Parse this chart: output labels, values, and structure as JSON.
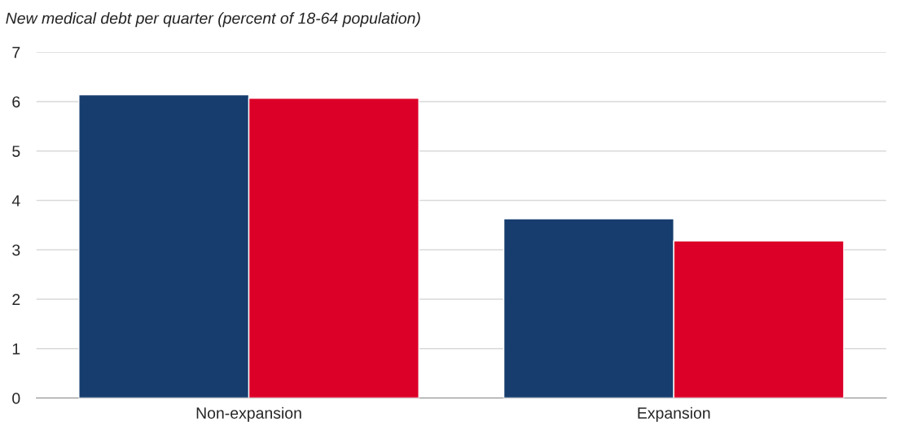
{
  "chart_data": {
    "type": "bar",
    "title": "New medical debt per quarter (percent of 18-64 population)",
    "categories": [
      "Non-expansion",
      "Expansion"
    ],
    "series": [
      {
        "color": "#163d6e",
        "values": [
          6.14,
          3.63
        ]
      },
      {
        "color": "#dc0028",
        "values": [
          6.07,
          3.18
        ]
      }
    ],
    "ylim": [
      0,
      7
    ],
    "yticks": [
      0,
      1,
      2,
      3,
      4,
      5,
      6,
      7
    ],
    "grid": "y",
    "legend": false
  }
}
